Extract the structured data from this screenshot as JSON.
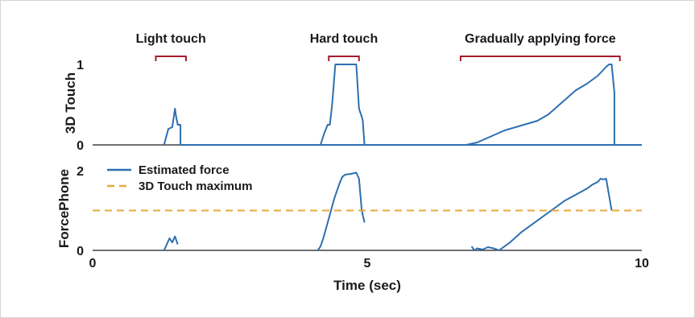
{
  "chart_data": [
    {
      "type": "line",
      "ylabel": "3D Touch",
      "yticks": [
        0,
        1
      ],
      "ylim": [
        0,
        1
      ],
      "xlim": [
        0,
        10
      ],
      "annotations": [
        {
          "label": "Light touch",
          "x0": 1.15,
          "x1": 1.7
        },
        {
          "label": "Hard touch",
          "x0": 4.3,
          "x1": 4.85
        },
        {
          "label": "Gradually applying force",
          "x0": 6.7,
          "x1": 9.6
        }
      ],
      "series": [
        {
          "color": "#2e6fb0",
          "x": [
            1.3,
            1.38,
            1.45,
            1.5,
            1.52,
            1.55,
            1.6,
            1.6,
            1.65,
            10
          ],
          "y": [
            0,
            0.2,
            0.22,
            0.45,
            0.35,
            0.25,
            0.25,
            0,
            0,
            0
          ]
        },
        {
          "color": "#2e6fb0",
          "x": [
            4.15,
            4.22,
            4.28,
            4.32,
            4.36,
            4.42,
            4.45,
            4.8,
            4.85,
            4.9,
            4.92,
            4.95
          ],
          "y": [
            0,
            0.15,
            0.25,
            0.25,
            0.5,
            1,
            1,
            1,
            0.45,
            0.35,
            0.3,
            0
          ]
        },
        {
          "color": "#2e6fb0",
          "x": [
            6.8,
            7.0,
            7.3,
            7.5,
            7.7,
            7.9,
            8.1,
            8.3,
            8.5,
            8.7,
            8.8,
            9.0,
            9.2,
            9.35,
            9.4,
            9.45,
            9.5,
            9.5
          ],
          "y": [
            0,
            0.03,
            0.12,
            0.18,
            0.22,
            0.26,
            0.3,
            0.38,
            0.5,
            0.62,
            0.68,
            0.76,
            0.86,
            0.97,
            1,
            1,
            0.65,
            0
          ]
        },
        {
          "color": "#2e6fb0",
          "x": [
            9.5,
            10
          ],
          "y": [
            0,
            0
          ]
        }
      ]
    },
    {
      "type": "line",
      "ylabel": "ForcePhone",
      "xlabel": "Time (sec)",
      "xticks": [
        0,
        5,
        10
      ],
      "yticks": [
        0,
        2
      ],
      "xlim": [
        0,
        10
      ],
      "ylim": [
        0,
        2
      ],
      "legend": "top-left",
      "series": [
        {
          "name": "Estimated force",
          "color": "#2e6fb0",
          "x": [
            1.3,
            1.35,
            1.4,
            1.45,
            1.5,
            1.55
          ],
          "y": [
            0,
            0.15,
            0.3,
            0.2,
            0.35,
            0.15
          ]
        },
        {
          "name": "Estimated force",
          "color": "#2e6fb0",
          "x": [
            4.1,
            4.15,
            4.2,
            4.3,
            4.4,
            4.5,
            4.55,
            4.6,
            4.7,
            4.8,
            4.85,
            4.9,
            4.95
          ],
          "y": [
            0,
            0.1,
            0.3,
            0.8,
            1.3,
            1.7,
            1.85,
            1.9,
            1.92,
            1.95,
            1.8,
            1.0,
            0.7
          ]
        },
        {
          "name": "Estimated force",
          "color": "#2e6fb0",
          "x": [
            6.9,
            6.95,
            7.0,
            7.1,
            7.2,
            7.3,
            7.4,
            7.5,
            7.6,
            7.8,
            8.0,
            8.2,
            8.4,
            8.6,
            8.8,
            9.0,
            9.1,
            9.2,
            9.25,
            9.3,
            9.35,
            9.45
          ],
          "y": [
            0.1,
            0,
            0.05,
            0.02,
            0.08,
            0.05,
            0,
            0.1,
            0.2,
            0.45,
            0.65,
            0.85,
            1.05,
            1.25,
            1.4,
            1.55,
            1.65,
            1.72,
            1.8,
            1.78,
            1.8,
            1.0
          ]
        },
        {
          "name": "3D Touch maximum",
          "color": "#e8a93a",
          "dashed": true,
          "x": [
            0,
            10
          ],
          "y": [
            1,
            1
          ]
        }
      ],
      "legend_entries": [
        {
          "label": "Estimated force",
          "color": "#2e6fb0",
          "dashed": false
        },
        {
          "label": "3D Touch maximum",
          "color": "#e8a93a",
          "dashed": true
        }
      ]
    }
  ],
  "colors": {
    "line": "#2e6fb0",
    "threshold": "#e8a93a",
    "bracket": "#a61c2c",
    "axis": "#1a1a1a"
  }
}
